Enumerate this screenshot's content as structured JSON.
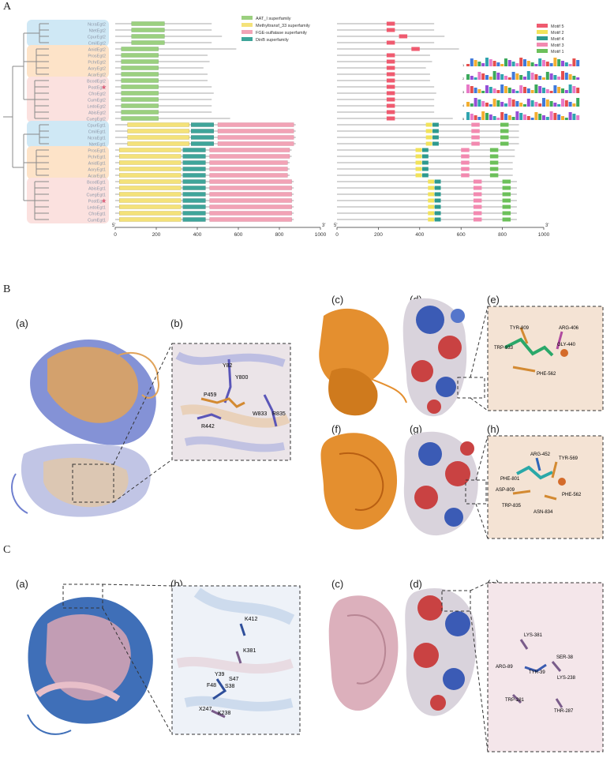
{
  "panels": {
    "A": "A",
    "B": "B",
    "C": "C"
  },
  "sublabels": {
    "B": [
      "(a)",
      "(b)",
      "(c)",
      "(d)",
      "(e)",
      "(f)",
      "(g)",
      "(h)"
    ],
    "C": [
      "(a)",
      "(b)",
      "(c)",
      "(d)",
      "(e)"
    ]
  },
  "panelA": {
    "taxa": [
      "NcraEgt2",
      "NtetEgt2",
      "CpurEgt2",
      "CmilEgt2",
      "AnidEgt2",
      "ProsEgt2",
      "PchrEgt2",
      "AoryEgt2",
      "AcarEgt2",
      "BcodEgt2",
      "PostEgt2",
      "CfroEgt2",
      "CumEgt2",
      "LedoEgt2",
      "AbisEgt2",
      "CuegEgt2",
      "CpurEgt1",
      "CmilEgt1",
      "NcraEgt1",
      "NtetEgt1",
      "ProsEgt1",
      "PchrEgt1",
      "AnidEgt1",
      "AoryEgt1",
      "AcarEgt1",
      "BcodEgt1",
      "AbisEgt1",
      "CuegEgt1",
      "PostEgt1",
      "LedoEgt1",
      "CfroEgt1",
      "CumEgt1"
    ],
    "star_taxa": [
      "PostEgt2",
      "PostEgt1"
    ],
    "clade_colors": {
      "blue": "#cfe8f5",
      "orange": "#fde3c8",
      "pink": "#fbe1df"
    },
    "domain_legend": [
      {
        "label": "AAT_I superfamily",
        "color": "#9bd07f"
      },
      {
        "label": "Methyltransf_33 superfamily",
        "color": "#f4e27a"
      },
      {
        "label": "FGE-sulfatase superfamily",
        "color": "#f2a3b6"
      },
      {
        "label": "DinB superfamily",
        "color": "#3fa59a"
      }
    ],
    "motif_legend": [
      {
        "label": "Motif 5",
        "color": "#ef5a6f"
      },
      {
        "label": "Motif 2",
        "color": "#f2e35a"
      },
      {
        "label": "Motif 4",
        "color": "#2e9a8f"
      },
      {
        "label": "Motif 3",
        "color": "#f28ab0"
      },
      {
        "label": "Motif 1",
        "color": "#6cc05a"
      }
    ],
    "axis_left": {
      "start": "5'",
      "end": "3'",
      "ticks": [
        "0",
        "200",
        "400",
        "600",
        "800",
        "1000"
      ]
    },
    "axis_right": {
      "start": "5'",
      "end": "3'",
      "ticks": [
        "0",
        "200",
        "400",
        "600",
        "800",
        "1000"
      ]
    },
    "logo_rows": [
      "1",
      "2",
      "3",
      "4",
      "5"
    ]
  },
  "panelB": {
    "b_residues": [
      "Y82",
      "Y800",
      "P459",
      "R442",
      "W833",
      "R835"
    ],
    "e_residues": [
      "TYR-809",
      "ARG-406",
      "TRP-833",
      "GLY-440",
      "PHE-562"
    ],
    "h_residues": [
      "ARG-452",
      "TYR-569",
      "PHE-801",
      "ASP-809",
      "TRP-835",
      "ASN-834",
      "PHE-562"
    ]
  },
  "panelC": {
    "b_residues": [
      "K412",
      "K381",
      "Y39",
      "S47",
      "F48",
      "S38",
      "X247",
      "K238"
    ],
    "e_residues": [
      "LYS-381",
      "ARG-89",
      "TYR-39",
      "SER-38",
      "LYS-238",
      "TRP-281",
      "THR-287"
    ]
  }
}
